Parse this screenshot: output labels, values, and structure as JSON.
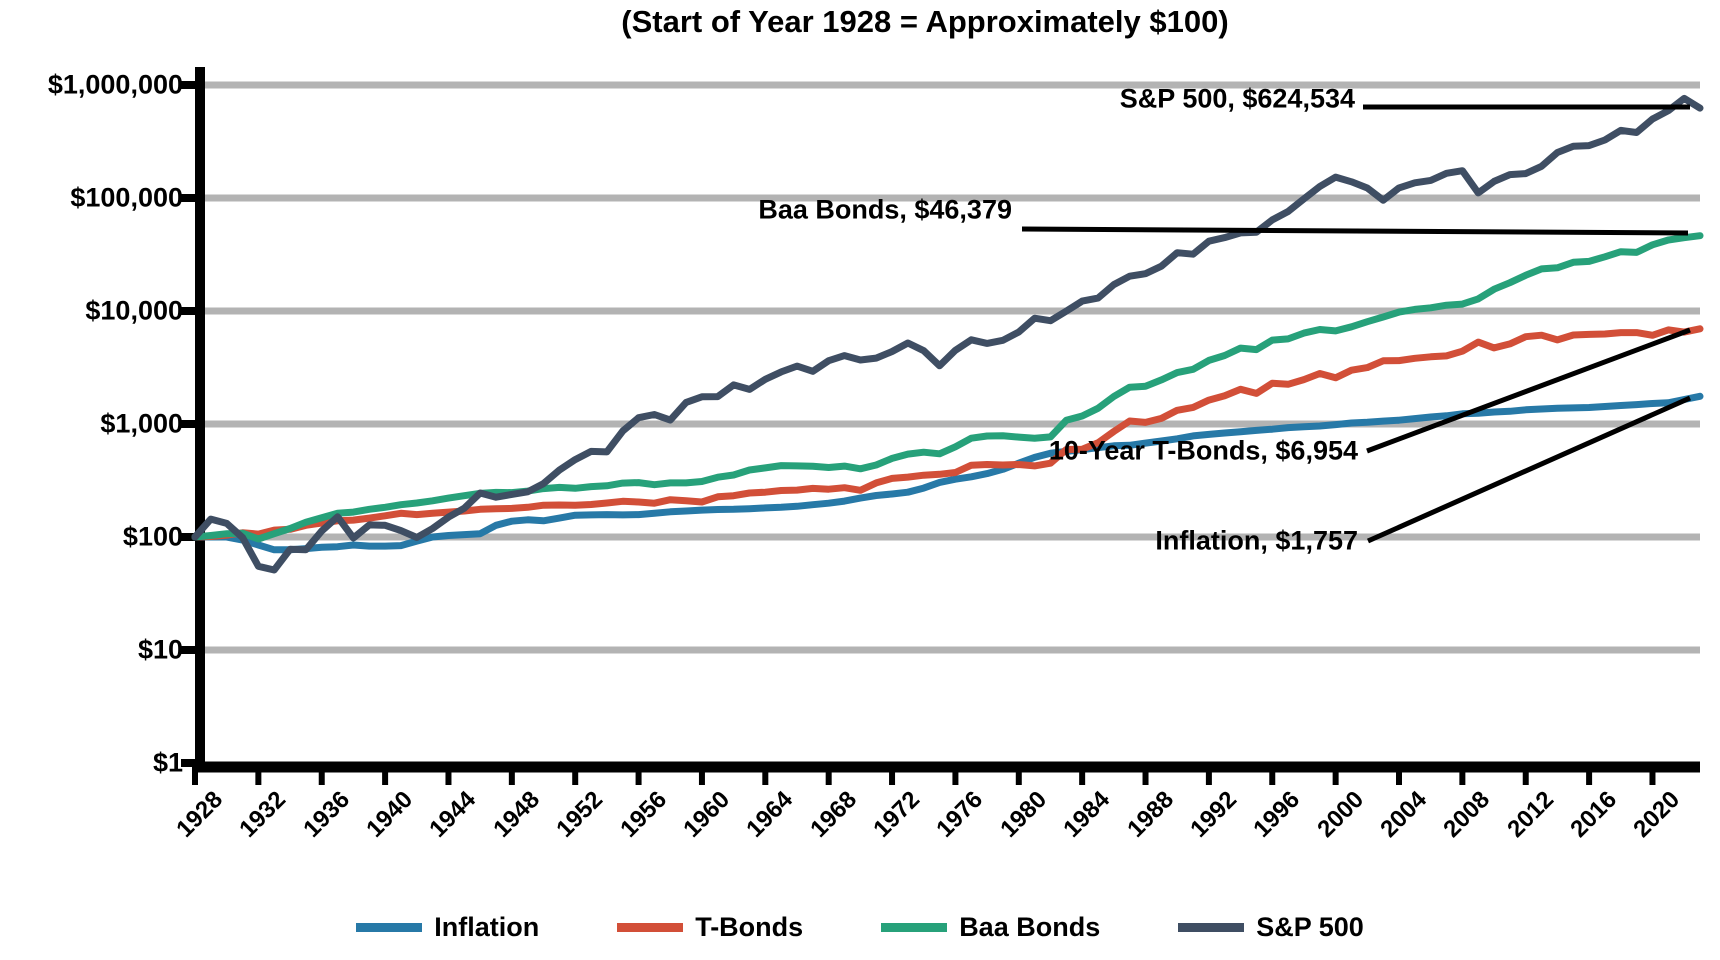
{
  "chart_data": {
    "type": "line",
    "title": "(Start of Year 1928 = Approximately $100)",
    "grid": true,
    "legend_position": "bottom",
    "y_axis": {
      "scale": "log",
      "min": 1,
      "max": 1000000,
      "tick_labels": [
        "$1,000,000",
        "$100,000",
        "$10,000",
        "$1,000",
        "$100",
        "$10",
        "$1"
      ]
    },
    "x_axis": {
      "first_year": 1928,
      "last_year": 2022,
      "tick_labels": [
        "1928",
        "1932",
        "1936",
        "1940",
        "1944",
        "1948",
        "1952",
        "1956",
        "1960",
        "1964",
        "1968",
        "1972",
        "1976",
        "1980",
        "1984",
        "1988",
        "1992",
        "1996",
        "2000",
        "2004",
        "2008",
        "2012",
        "2016",
        "2020"
      ]
    },
    "legend": [
      "Inflation",
      "T-Bonds",
      "Baa Bonds",
      "S&P 500"
    ],
    "annotations": [
      {
        "series": "S&P 500",
        "text": "S&P 500, $624,534"
      },
      {
        "series": "Baa Bonds",
        "text": "Baa Bonds, $46,379"
      },
      {
        "series": "T-Bonds",
        "text": "10-Year T-Bonds, $6,954"
      },
      {
        "series": "Inflation",
        "text": "Inflation, $1,757"
      }
    ],
    "series": [
      {
        "name": "Inflation",
        "color": "#2779a7",
        "final_value": 1757,
        "values": [
          100,
          100,
          100,
          94,
          85,
          77,
          77,
          79,
          81,
          82,
          85,
          83,
          83,
          84,
          92,
          100,
          103,
          105,
          107,
          127,
          138,
          142,
          139,
          147,
          156,
          157,
          158,
          157,
          158,
          162,
          167,
          170,
          173,
          175,
          176,
          178,
          181,
          183,
          187,
          193,
          199,
          208,
          221,
          233,
          240,
          249,
          271,
          304,
          325,
          341,
          364,
          397,
          450,
          506,
          551,
          572,
          594,
          617,
          641,
          648,
          677,
          707,
          740,
          785,
          809,
          832,
          855,
          878,
          900,
          930,
          946,
          961,
          987,
          1020,
          1036,
          1061,
          1081,
          1116,
          1154,
          1183,
          1232,
          1243,
          1277,
          1296,
          1335,
          1358,
          1378,
          1389,
          1399,
          1428,
          1458,
          1486,
          1520,
          1541,
          1649,
          1757
        ]
      },
      {
        "name": "T-Bonds",
        "color": "#d24f38",
        "final_value": 6954,
        "values": [
          100,
          101,
          104,
          109,
          106,
          115,
          117,
          127,
          133,
          139,
          141,
          147,
          154,
          162,
          158,
          162,
          166,
          170,
          176,
          178,
          179,
          183,
          191,
          192,
          191,
          194,
          200,
          207,
          204,
          199,
          214,
          209,
          204,
          227,
          232,
          245,
          249,
          258,
          260,
          269,
          265,
          273,
          259,
          301,
          330,
          339,
          352,
          359,
          372,
          432,
          438,
          434,
          438,
          426,
          450,
          595,
          598,
          682,
          858,
          1064,
          1033,
          1122,
          1321,
          1402,
          1626,
          1776,
          2030,
          1866,
          2297,
          2246,
          2471,
          2796,
          2564,
          2992,
          3154,
          3626,
          3641,
          3815,
          3929,
          4005,
          4407,
          5303,
          4714,
          5113,
          5927,
          6103,
          5546,
          6130,
          6210,
          6253,
          6433,
          6433,
          6100,
          6800,
          6500,
          6954
        ]
      },
      {
        "name": "Baa Bonds",
        "color": "#27a17a",
        "final_value": 46379,
        "values": [
          100,
          103,
          107,
          108,
          96,
          107,
          119,
          135,
          148,
          162,
          166,
          176,
          183,
          193,
          200,
          209,
          221,
          232,
          243,
          248,
          247,
          255,
          268,
          275,
          270,
          279,
          284,
          300,
          303,
          290,
          301,
          301,
          310,
          338,
          354,
          392,
          409,
          428,
          426,
          422,
          412,
          424,
          401,
          434,
          496,
          541,
          563,
          545,
          628,
          749,
          783,
          786,
          766,
          748,
          769,
          1078,
          1178,
          1377,
          1753,
          2116,
          2156,
          2455,
          2852,
          3048,
          3652,
          4035,
          4697,
          4553,
          5526,
          5669,
          6374,
          6866,
          6667,
          7248,
          8033,
          8856,
          9782,
          10321,
          10673,
          11259,
          11507,
          12800,
          15600,
          17800,
          20700,
          23600,
          24100,
          27000,
          27500,
          30200,
          33500,
          33000,
          38500,
          42500,
          44500,
          46379
        ]
      },
      {
        "name": "S&P 500",
        "color": "#3f4e63",
        "final_value": 624534,
        "values": [
          100,
          144,
          132,
          99,
          55,
          51,
          78,
          77,
          113,
          151,
          98,
          128,
          127,
          114,
          99,
          119,
          150,
          180,
          245,
          225,
          238,
          251,
          297,
          391,
          484,
          572,
          566,
          865,
          1138,
          1213,
          1083,
          1553,
          1740,
          1748,
          2219,
          2024,
          2485,
          2894,
          3255,
          2929,
          3632,
          4032,
          3686,
          3832,
          4380,
          5213,
          4450,
          3272,
          4491,
          5564,
          5165,
          5503,
          6521,
          8638,
          8214,
          9982,
          12233,
          13000,
          17120,
          20313,
          21377,
          24925,
          32820,
          31801,
          41485,
          44644,
          49139,
          49790,
          64000,
          76000,
          98256,
          126455,
          153137,
          139202,
          122637,
          95534,
          122952,
          136354,
          143035,
          165492,
          174594,
          110867,
          140136,
          161157,
          164542,
          190868,
          252709,
          286825,
          290841,
          325742,
          396754,
          380090,
          499819,
          591785,
          761627,
          624534
        ]
      }
    ]
  }
}
